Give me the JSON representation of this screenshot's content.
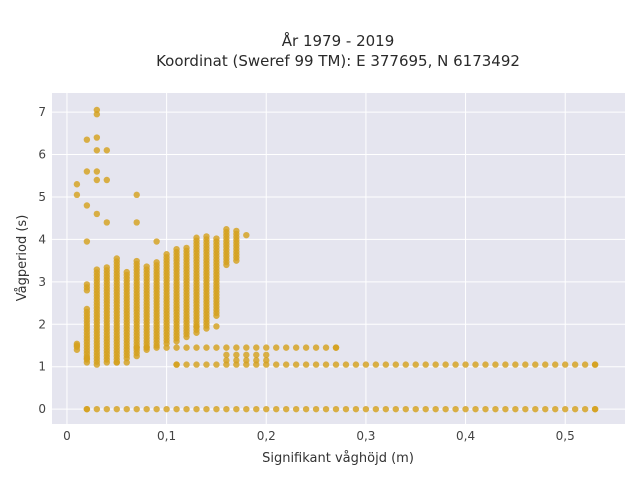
{
  "chart_data": {
    "type": "scatter",
    "title_line1": "År 1979 - 2019",
    "title_line2": "Koordinat (Sweref 99 TM): E 377695, N 6173492",
    "xlabel": "Signifikant våghöjd (m)",
    "ylabel": "Vågperiod (s)",
    "xlim": [
      -0.015,
      0.56
    ],
    "ylim": [
      -0.35,
      7.45
    ],
    "x_ticks": [
      0,
      0.1,
      0.2,
      0.3,
      0.4,
      0.5
    ],
    "x_tick_labels": [
      "0",
      "0,1",
      "0,2",
      "0,3",
      "0,4",
      "0,5"
    ],
    "y_ticks": [
      0,
      1,
      2,
      3,
      4,
      5,
      6,
      7
    ],
    "y_tick_labels": [
      "0",
      "1",
      "2",
      "3",
      "4",
      "5",
      "6",
      "7"
    ],
    "grid": true,
    "marker_color": "#d4a11e",
    "background_color": "#e5e5ef",
    "series": [
      {
        "values": [
          {
            "x": 0.02,
            "y": 0.0
          },
          {
            "x": 0.53,
            "y": 0.0
          },
          {
            "x": 0.01,
            "y": 1.5
          },
          {
            "x": 0.02,
            "y": 1.2
          },
          {
            "x": 0.11,
            "y": 1.05
          },
          {
            "x": 0.53,
            "y": 1.05
          },
          {
            "x": 0.27,
            "y": 1.45
          },
          {
            "x": 0.03,
            "y": 7.05
          },
          {
            "x": 0.03,
            "y": 6.95
          },
          {
            "x": 0.02,
            "y": 6.35
          },
          {
            "x": 0.03,
            "y": 6.4
          },
          {
            "x": 0.03,
            "y": 6.1
          },
          {
            "x": 0.04,
            "y": 6.1
          },
          {
            "x": 0.01,
            "y": 5.3
          },
          {
            "x": 0.01,
            "y": 5.05
          },
          {
            "x": 0.02,
            "y": 5.6
          },
          {
            "x": 0.03,
            "y": 5.6
          },
          {
            "x": 0.03,
            "y": 5.4
          },
          {
            "x": 0.04,
            "y": 5.4
          },
          {
            "x": 0.07,
            "y": 5.05
          },
          {
            "x": 0.02,
            "y": 4.8
          },
          {
            "x": 0.03,
            "y": 4.6
          },
          {
            "x": 0.04,
            "y": 4.4
          },
          {
            "x": 0.07,
            "y": 4.4
          },
          {
            "x": 0.02,
            "y": 3.95
          },
          {
            "x": 0.09,
            "y": 3.95
          },
          {
            "x": 0.18,
            "y": 4.1
          },
          {
            "x": 0.13,
            "y": 1.95
          },
          {
            "x": 0.15,
            "y": 1.95
          },
          {
            "x": 0.05,
            "y": 1.1
          },
          {
            "x": 0.06,
            "y": 1.1
          }
        ]
      }
    ]
  }
}
